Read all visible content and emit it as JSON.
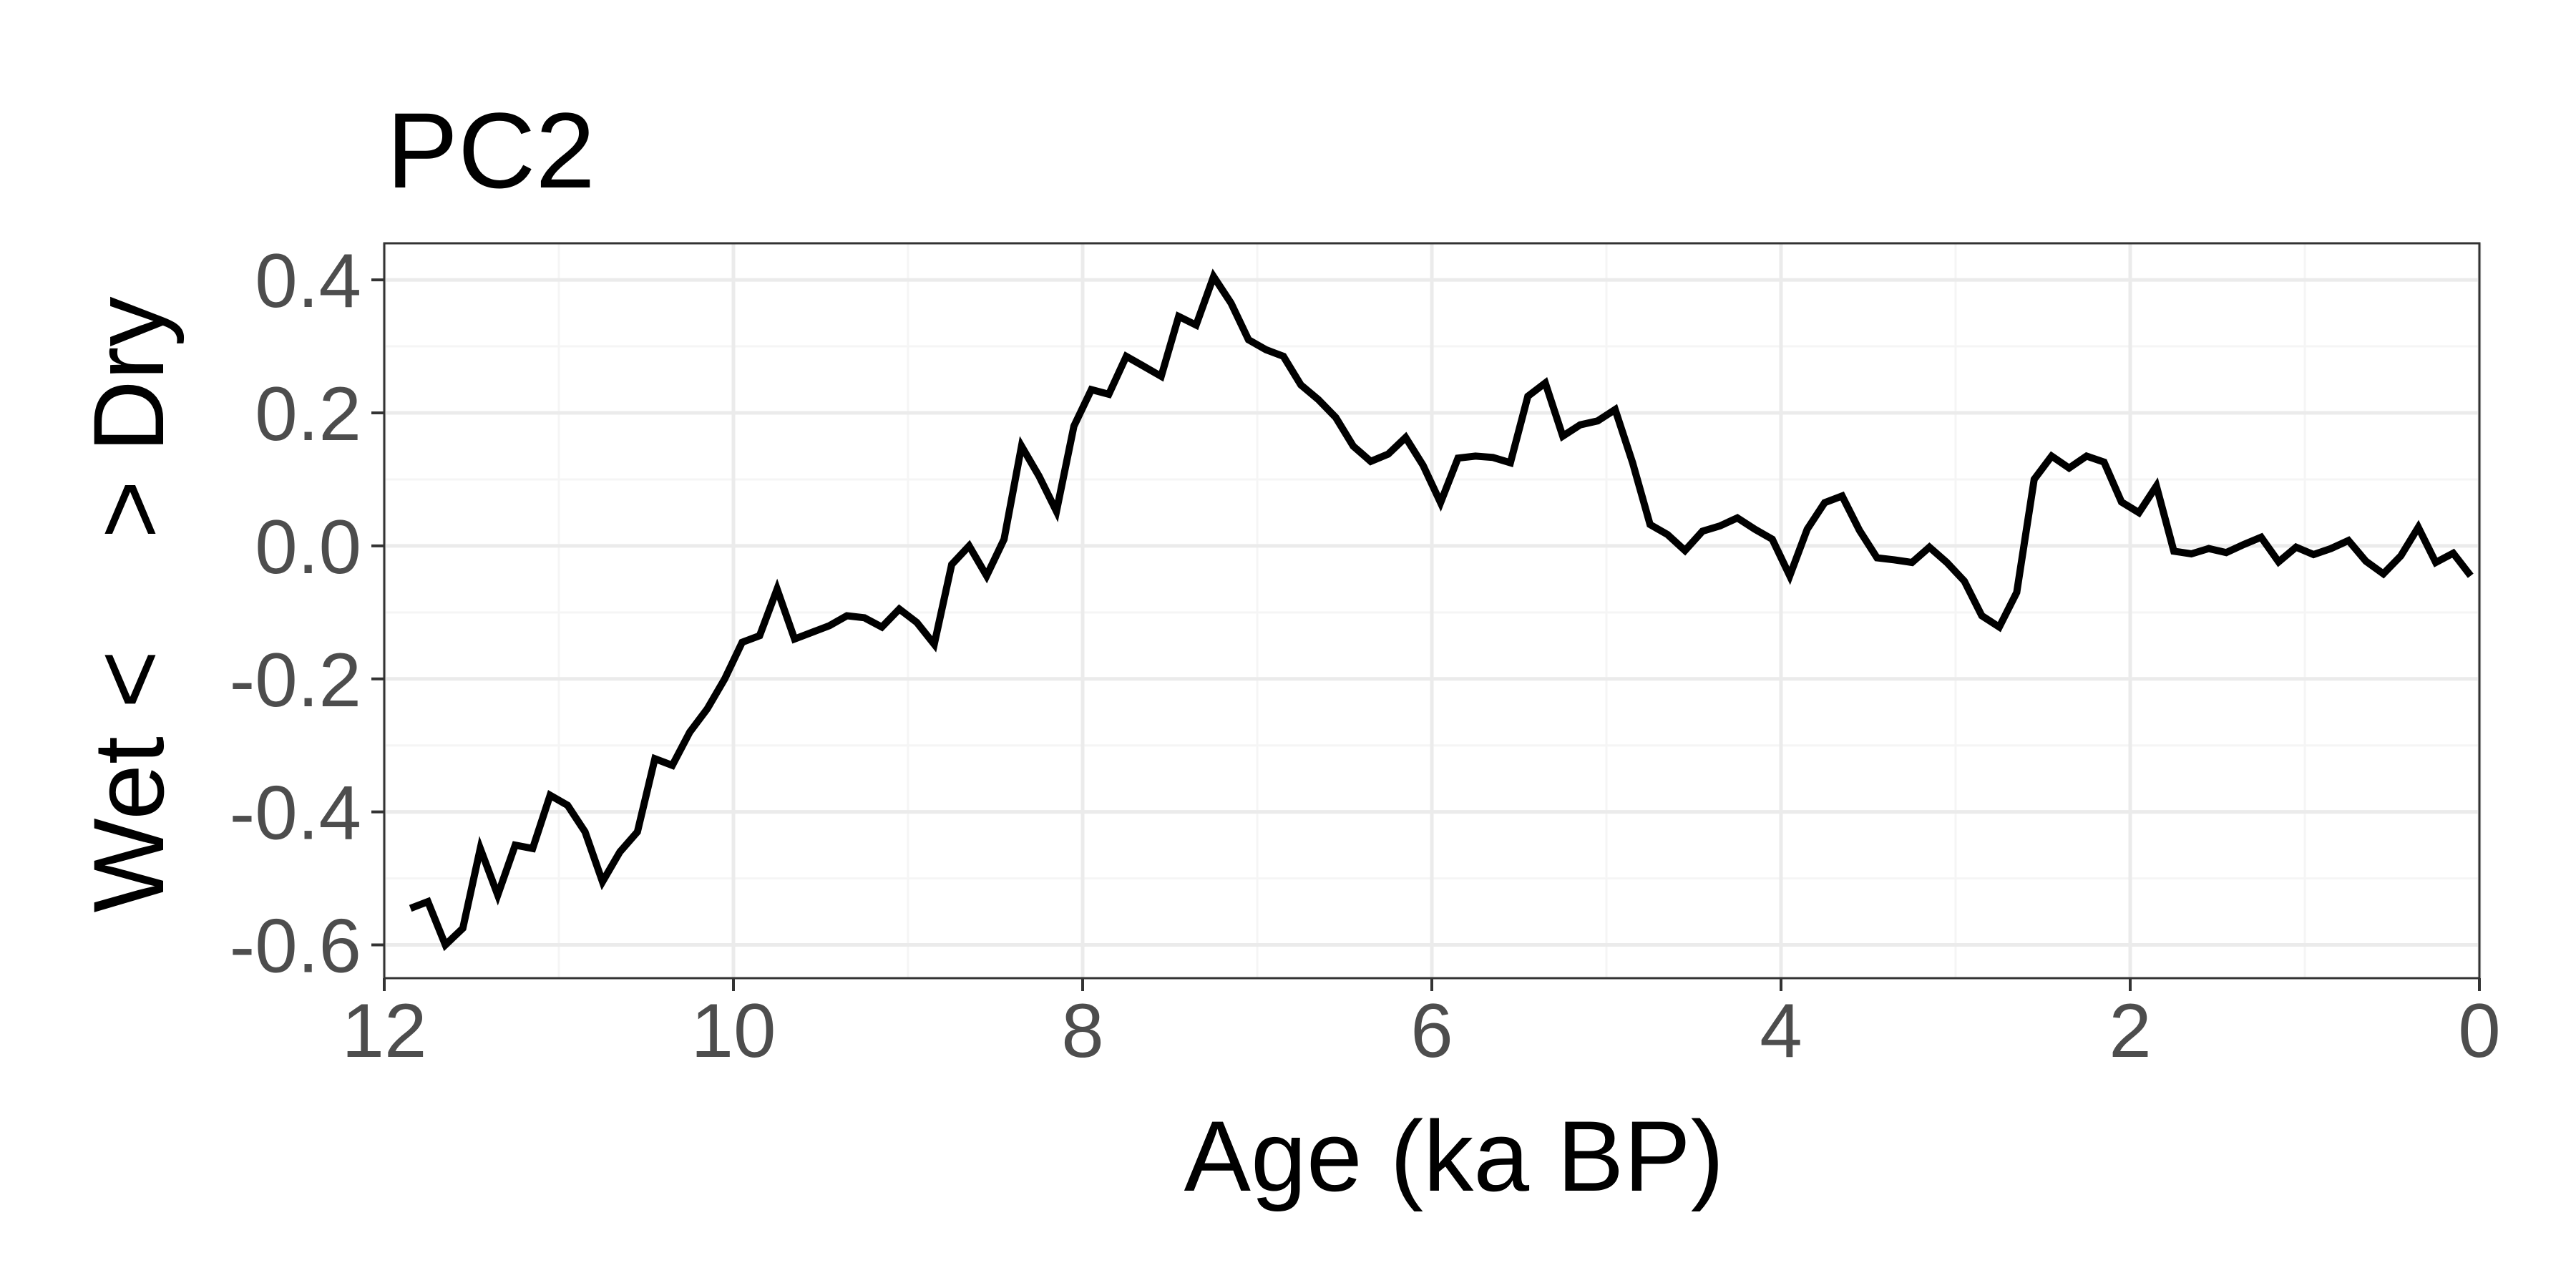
{
  "chart_data": {
    "type": "line",
    "title": "PC2",
    "xlabel": "Age (ka BP)",
    "ylabel": "Wet <    > Dry",
    "xlim": [
      12,
      0
    ],
    "ylim": [
      -0.65,
      0.455
    ],
    "x_axis_reversed": true,
    "xticks": [
      12,
      10,
      8,
      6,
      4,
      2,
      0
    ],
    "xtick_labels": [
      "12",
      "10",
      "8",
      "6",
      "4",
      "2",
      "0"
    ],
    "yticks": [
      0.4,
      0.2,
      0.0,
      -0.2,
      -0.4,
      -0.6
    ],
    "ytick_labels": [
      "0.4",
      "0.2",
      "0.0",
      "-0.2",
      "-0.4",
      "-0.6"
    ],
    "grid": true,
    "legend": "none",
    "colors": {
      "line": "#000000",
      "panel_background": "#ffffff",
      "panel_border": "#333333",
      "grid_major": "#ebebeb",
      "grid_minor": "#f5f5f5",
      "tick_label": "#4d4d4d"
    },
    "series": [
      {
        "x": [
          11.85,
          11.75,
          11.65,
          11.55,
          11.45,
          11.35,
          11.25,
          11.15,
          11.05,
          10.95,
          10.85,
          10.75,
          10.65,
          10.55,
          10.45,
          10.35,
          10.25,
          10.15,
          10.05,
          9.95,
          9.85,
          9.75,
          9.65,
          9.55,
          9.45,
          9.35,
          9.25,
          9.15,
          9.05,
          8.95,
          8.85,
          8.75,
          8.65,
          8.55,
          8.45,
          8.35,
          8.25,
          8.15,
          8.05,
          7.95,
          7.85,
          7.75,
          7.65,
          7.55,
          7.45,
          7.35,
          7.25,
          7.15,
          7.05,
          6.95,
          6.85,
          6.75,
          6.65,
          6.55,
          6.45,
          6.35,
          6.25,
          6.15,
          6.05,
          5.95,
          5.85,
          5.75,
          5.65,
          5.55,
          5.45,
          5.35,
          5.25,
          5.15,
          5.05,
          4.95,
          4.85,
          4.75,
          4.65,
          4.55,
          4.45,
          4.35,
          4.25,
          4.15,
          4.05,
          3.95,
          3.85,
          3.75,
          3.65,
          3.55,
          3.45,
          3.35,
          3.25,
          3.15,
          3.05,
          2.95,
          2.85,
          2.75,
          2.65,
          2.55,
          2.45,
          2.35,
          2.25,
          2.15,
          2.05,
          1.95,
          1.85,
          1.75,
          1.65,
          1.55,
          1.45,
          1.35,
          1.25,
          1.15,
          1.05,
          0.95,
          0.85,
          0.75,
          0.65,
          0.55,
          0.45,
          0.35,
          0.25,
          0.15,
          0.05
        ],
        "y": [
          -0.545,
          -0.535,
          -0.6,
          -0.575,
          -0.455,
          -0.525,
          -0.45,
          -0.455,
          -0.375,
          -0.39,
          -0.43,
          -0.505,
          -0.46,
          -0.43,
          -0.32,
          -0.33,
          -0.28,
          -0.245,
          -0.2,
          -0.145,
          -0.135,
          -0.065,
          -0.14,
          -0.13,
          -0.12,
          -0.105,
          -0.108,
          -0.122,
          -0.095,
          -0.115,
          -0.148,
          -0.028,
          0.0,
          -0.045,
          0.01,
          0.15,
          0.105,
          0.052,
          0.18,
          0.235,
          0.228,
          0.285,
          0.27,
          0.255,
          0.345,
          0.332,
          0.405,
          0.365,
          0.31,
          0.295,
          0.285,
          0.242,
          0.22,
          0.193,
          0.15,
          0.127,
          0.138,
          0.163,
          0.121,
          0.065,
          0.132,
          0.135,
          0.133,
          0.125,
          0.225,
          0.245,
          0.165,
          0.182,
          0.188,
          0.205,
          0.125,
          0.032,
          0.017,
          -0.007,
          0.022,
          0.03,
          0.042,
          0.025,
          0.01,
          -0.045,
          0.025,
          0.065,
          0.075,
          0.023,
          -0.018,
          -0.021,
          -0.025,
          -0.002,
          -0.025,
          -0.053,
          -0.105,
          -0.122,
          -0.07,
          0.1,
          0.135,
          0.117,
          0.135,
          0.126,
          0.066,
          0.05,
          0.09,
          -0.008,
          -0.012,
          -0.004,
          -0.01,
          0.002,
          0.013,
          -0.024,
          -0.002,
          -0.013,
          -0.004,
          0.008,
          -0.023,
          -0.042,
          -0.015,
          0.028,
          -0.025,
          -0.011,
          -0.045
        ]
      }
    ]
  }
}
